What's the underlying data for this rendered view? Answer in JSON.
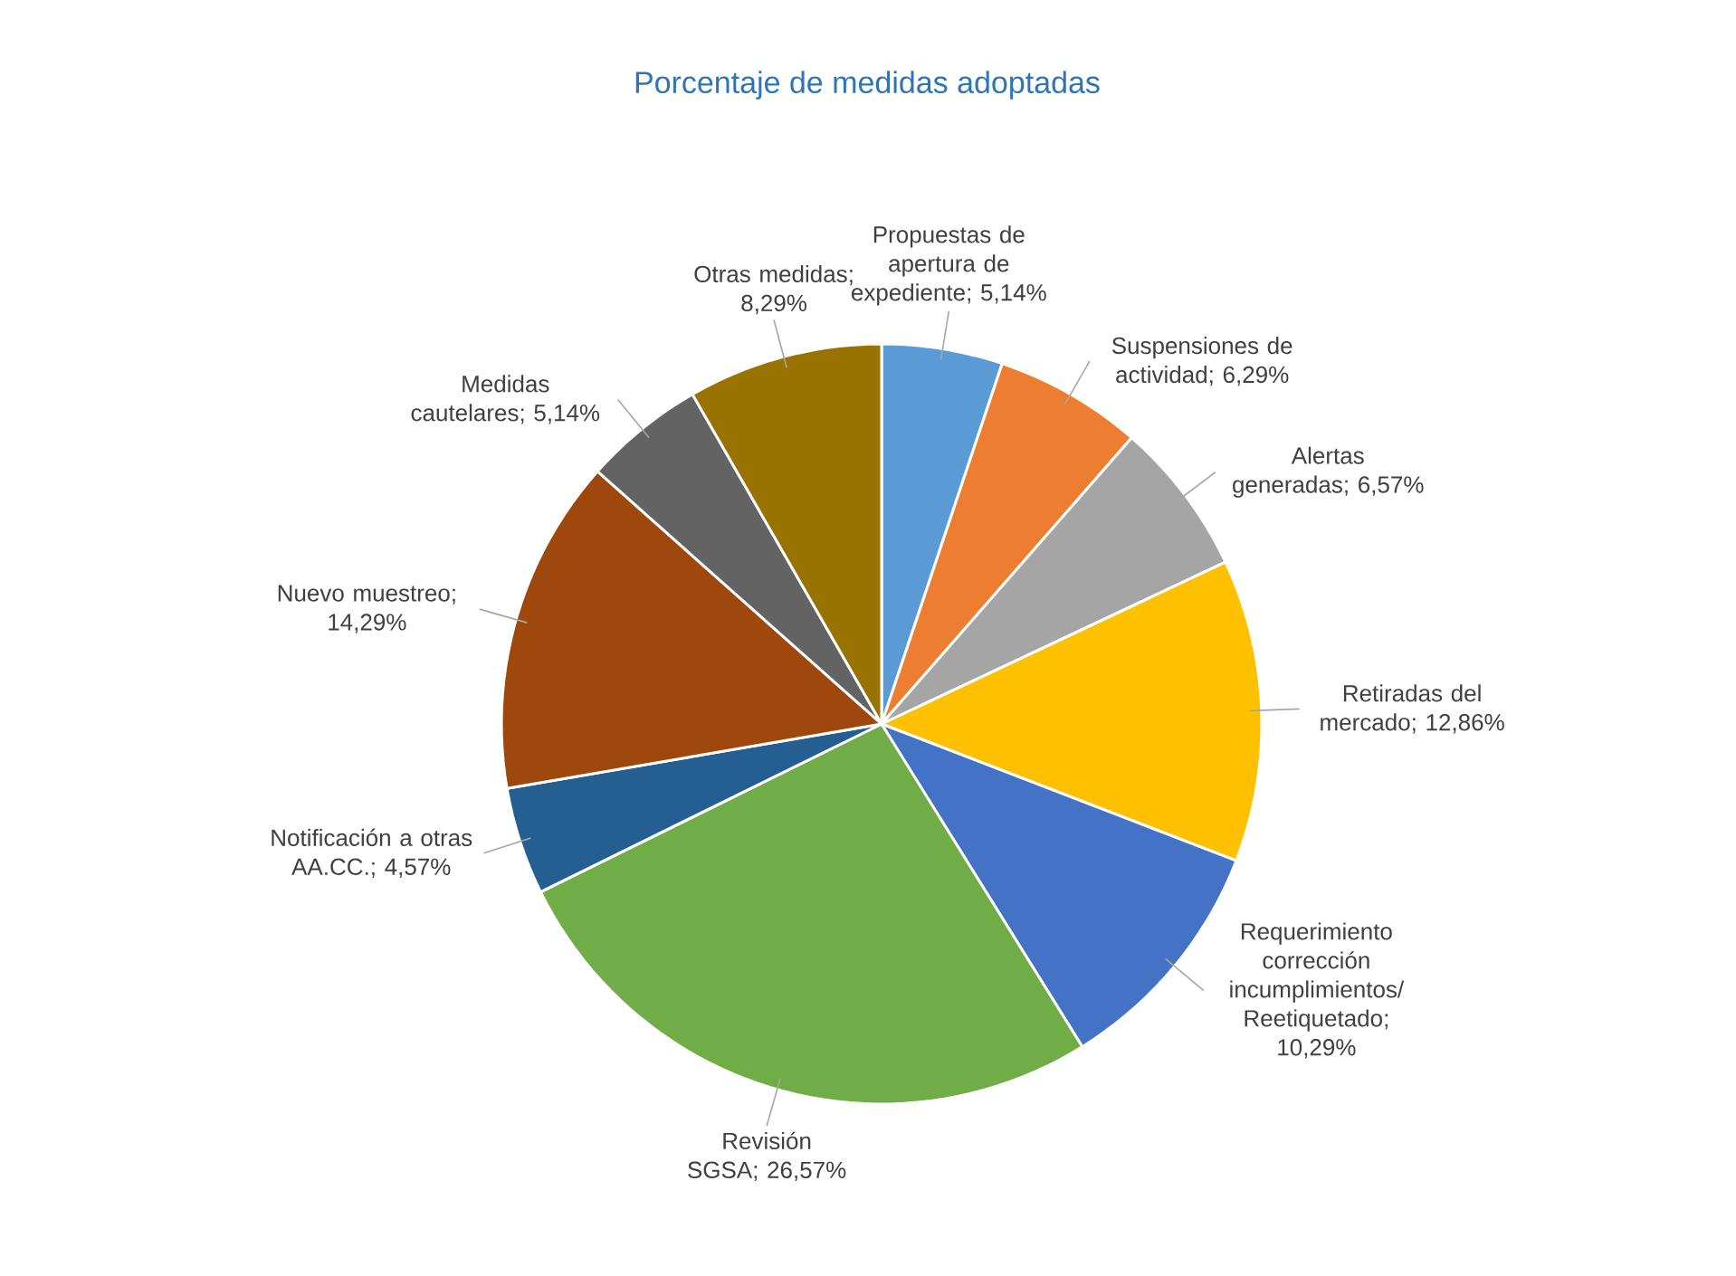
{
  "chart_data": {
    "type": "pie",
    "title": "Porcentaje de medidas adoptadas",
    "categories": [
      "Propuestas de apertura de expediente",
      "Suspensiones de actividad",
      "Alertas generadas",
      "Retiradas del mercado",
      "Requerimiento corrección incumplimientos/ Reetiquetado",
      "Revisión SGSA",
      "Notificación a otras AA.CC.",
      "Nuevo muestreo",
      "Medidas cautelares",
      "Otras medidas"
    ],
    "values": [
      5.14,
      6.29,
      6.57,
      12.86,
      10.29,
      26.57,
      4.57,
      14.29,
      5.14,
      8.29
    ],
    "value_labels": [
      "; 5,14%",
      "; 6,29%",
      "; 6,57%",
      "; 12,86%",
      "; 10,29%",
      "; 26,57%",
      "; 4,57%",
      "; 14,29%",
      "; 5,14%",
      "; 8,29%"
    ],
    "colors": [
      "#5b9bd5",
      "#ed7d31",
      "#a5a5a5",
      "#ffc000",
      "#4472c4",
      "#70ad47",
      "#255e91",
      "#9e480e",
      "#636363",
      "#997300"
    ]
  }
}
